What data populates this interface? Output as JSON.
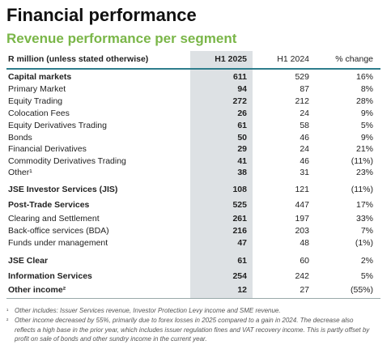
{
  "header": {
    "title": "Financial performance",
    "subtitle": "Revenue performance per segment"
  },
  "table": {
    "columns": [
      "R million (unless stated otherwise)",
      "H1 2025",
      "H1 2024",
      "% change"
    ],
    "rows": [
      [
        "Capital markets",
        611,
        529,
        "16%"
      ],
      [
        "Primary Market",
        94,
        87,
        "8%"
      ],
      [
        "Equity Trading",
        272,
        212,
        "28%"
      ],
      [
        "Colocation Fees",
        26,
        24,
        "9%"
      ],
      [
        "Equity Derivatives Trading",
        61,
        58,
        "5%"
      ],
      [
        "Bonds",
        50,
        46,
        "9%"
      ],
      [
        "Financial Derivatives",
        29,
        24,
        "21%"
      ],
      [
        "Commodity Derivatives Trading",
        41,
        46,
        "(11%)"
      ],
      [
        "Other¹",
        38,
        31,
        "23%"
      ],
      [
        "JSE Investor Services (JIS)",
        108,
        121,
        "(11%)"
      ],
      [
        "Post-Trade Services",
        525,
        447,
        "17%"
      ],
      [
        "Clearing and Settlement",
        261,
        197,
        "33%"
      ],
      [
        "Back-office services (BDA)",
        216,
        203,
        "7%"
      ],
      [
        "Funds under management",
        47,
        48,
        "(1%)"
      ],
      [
        "JSE Clear",
        61,
        60,
        "2%"
      ],
      [
        "Information Services",
        254,
        242,
        "5%"
      ],
      [
        "Other income²",
        12,
        27,
        "(55%)"
      ]
    ]
  },
  "footnotes": [
    {
      "marker": "¹",
      "text": "Other includes: Issuer Services revenue, Investor Protection Levy income and SME revenue."
    },
    {
      "marker": "²",
      "text": "Other income decreased by 55%, primarily due to forex losses in 2025 compared to a gain in 2024. The decrease also reflects a high base in the prior year, which includes issuer regulation fines and VAT recovery income. This is partly offset by profit on sale of bonds and other sundry income in the current year."
    }
  ]
}
